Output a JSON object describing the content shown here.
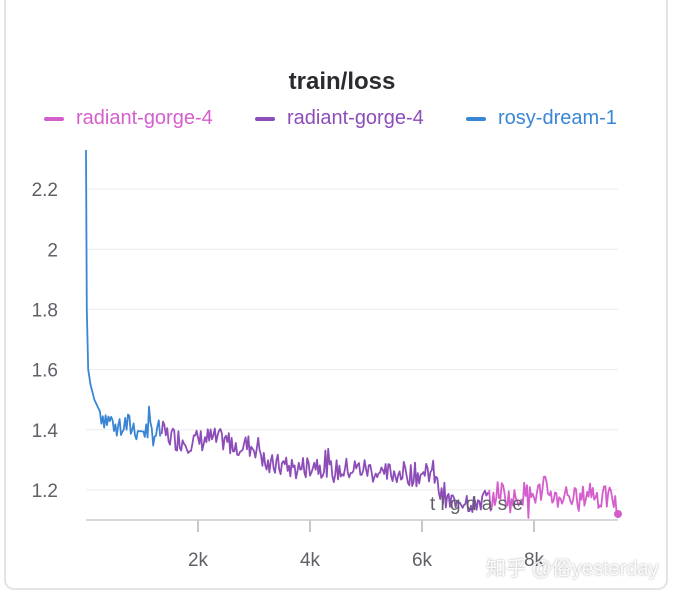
{
  "chart_data": {
    "type": "line",
    "title": "train/loss",
    "xlabel": "",
    "ylabel": "",
    "x_ticks": [
      "2k",
      "4k",
      "6k",
      "8k"
    ],
    "y_ticks": [
      "1.2",
      "1.4",
      "1.6",
      "1.8",
      "2",
      "2.2"
    ],
    "xlim": [
      0,
      9500
    ],
    "ylim": [
      1.1,
      2.33
    ],
    "grid": true,
    "legend_position": "top",
    "series": [
      {
        "name": "radiant-gorge-4",
        "color": "#d45fcc",
        "x": [
          7200,
          7400,
          7600,
          7800,
          8000,
          8200,
          8400,
          8600,
          8800,
          9000,
          9200,
          9400,
          9500
        ],
        "y": [
          1.17,
          1.2,
          1.16,
          1.19,
          1.18,
          1.21,
          1.17,
          1.19,
          1.16,
          1.2,
          1.17,
          1.18,
          1.12
        ]
      },
      {
        "name": "radiant-gorge-4",
        "color": "#8d4db8",
        "x": [
          1350,
          1600,
          1900,
          2200,
          2500,
          2800,
          3100,
          3200,
          3500,
          3800,
          4100,
          4400,
          4700,
          5000,
          5300,
          5600,
          5900,
          6200,
          6350,
          6500,
          6700,
          6900,
          7200
        ],
        "y": [
          1.39,
          1.37,
          1.36,
          1.37,
          1.36,
          1.35,
          1.34,
          1.28,
          1.28,
          1.27,
          1.29,
          1.26,
          1.27,
          1.27,
          1.25,
          1.26,
          1.25,
          1.26,
          1.17,
          1.16,
          1.17,
          1.16,
          1.17
        ]
      },
      {
        "name": "rosy-dream-1",
        "color": "#3a86d4",
        "x": [
          0,
          15,
          40,
          80,
          150,
          250,
          400,
          600,
          800,
          1000,
          1200,
          1350
        ],
        "y": [
          2.33,
          1.8,
          1.6,
          1.55,
          1.5,
          1.46,
          1.43,
          1.42,
          1.41,
          1.4,
          1.39,
          1.39
        ]
      }
    ]
  },
  "watermark": "知乎 @俗yesterday",
  "overlay_fragment": "t   l   g   d   a   s   e"
}
